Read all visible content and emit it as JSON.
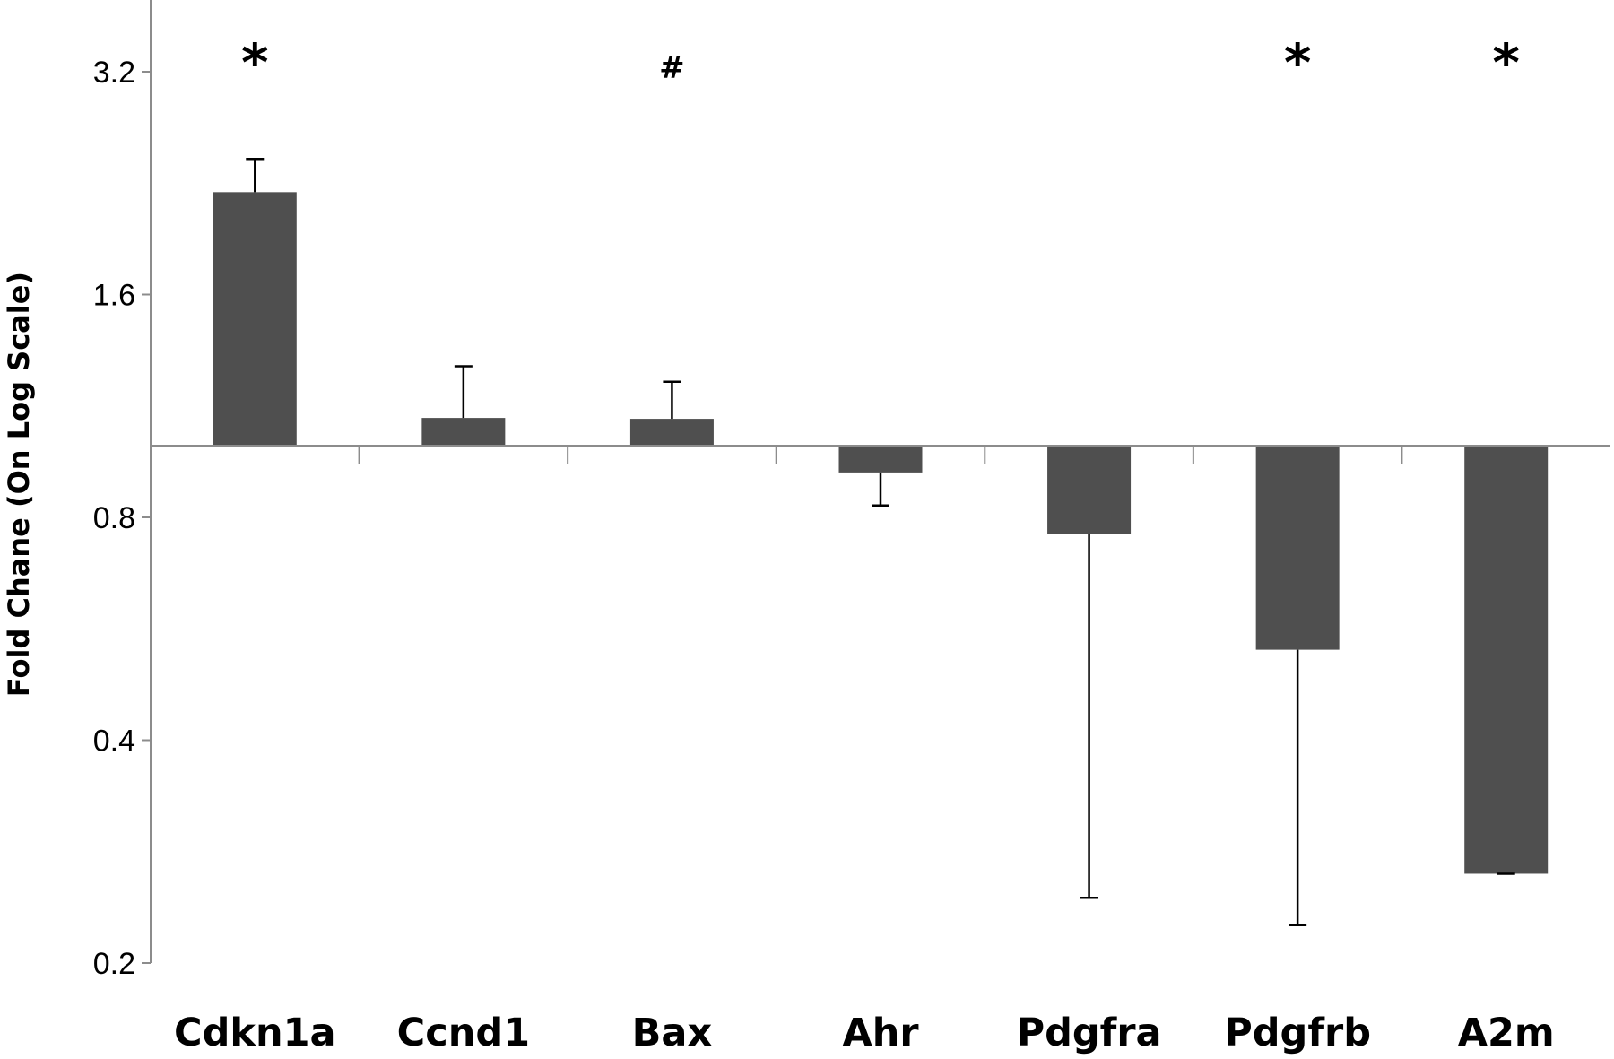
{
  "chart_data": {
    "type": "bar",
    "title": "",
    "xlabel": "",
    "ylabel": "Fold Chane (On Log Scale)",
    "yscale": "log2",
    "ylim": [
      0.2,
      3.7
    ],
    "baseline": 1.0,
    "yticks": [
      0.2,
      0.4,
      0.8,
      1.6,
      3.2
    ],
    "ytick_labels": [
      "0.2",
      "0.4",
      "0.8",
      "1.6",
      "3.2"
    ],
    "grid": false,
    "legend": "none",
    "bar_color": "#4f4f4f",
    "categories": [
      "Cdkn1a",
      "Ccnd1",
      "Bax",
      "Ahr",
      "Pdgfra",
      "Pdgfrb",
      "A2m"
    ],
    "values": [
      2.2,
      1.09,
      1.087,
      0.92,
      0.76,
      0.53,
      0.264
    ],
    "error_bar_ends": [
      2.44,
      1.28,
      1.22,
      0.83,
      0.245,
      0.225,
      0.264
    ],
    "significance": [
      "*",
      "",
      "#",
      "",
      "",
      "*",
      "*"
    ]
  }
}
